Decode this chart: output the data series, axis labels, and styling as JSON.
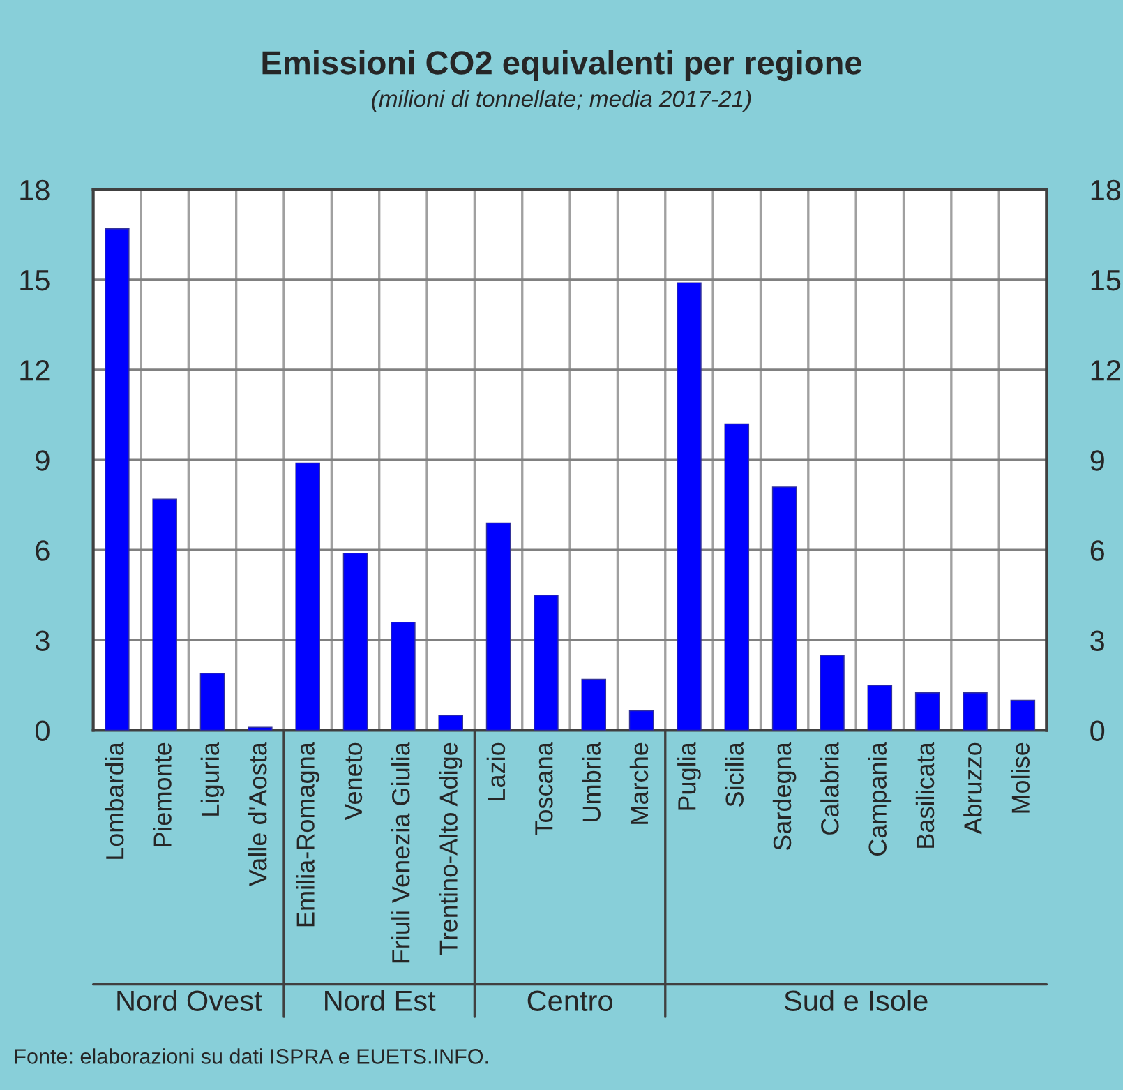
{
  "chart_data": {
    "type": "bar",
    "title": "Emissioni CO2 equivalenti per regione",
    "subtitle": "(milioni di tonnellate; media 2017-21)",
    "categories": [
      "Lombardia",
      "Piemonte",
      "Liguria",
      "Valle d'Aosta",
      "Emilia-Romagna",
      "Veneto",
      "Friuli Venezia Giulia",
      "Trentino-Alto Adige",
      "Lazio",
      "Toscana",
      "Umbria",
      "Marche",
      "Puglia",
      "Sicilia",
      "Sardegna",
      "Calabria",
      "Campania",
      "Basilicata",
      "Abruzzo",
      "Molise"
    ],
    "series": [
      {
        "color": "#0000ff",
        "values": [
          16.7,
          7.7,
          1.9,
          0.1,
          8.9,
          5.9,
          3.6,
          0.5,
          6.9,
          4.5,
          1.7,
          0.65,
          14.9,
          10.2,
          8.1,
          2.5,
          1.5,
          1.25,
          1.25,
          1.0
        ]
      }
    ],
    "ylim": [
      0,
      18
    ],
    "yticks": [
      0,
      3,
      6,
      9,
      12,
      15,
      18
    ],
    "y2lim": [
      0,
      18
    ],
    "y2ticks": [
      0,
      3,
      6,
      9,
      12,
      15,
      18
    ],
    "grid": true,
    "legend": false,
    "annotations": [
      "Nord Ovest",
      "Nord Est",
      "Centro",
      "Sud e Isole",
      "Fonte: elaborazioni su dati ISPRA e EUETS.INFO."
    ]
  }
}
